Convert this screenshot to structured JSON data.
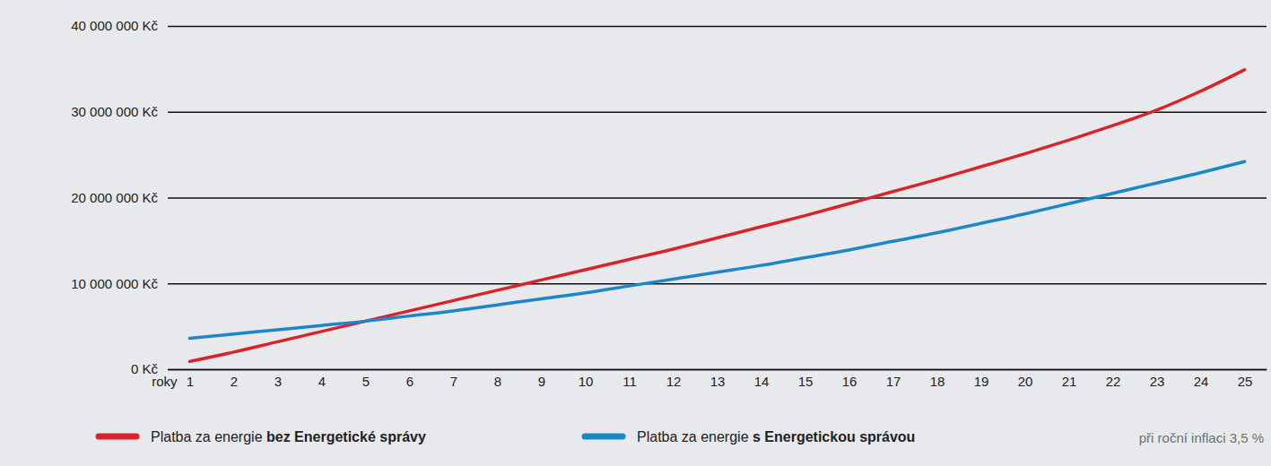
{
  "chart_data": {
    "type": "line",
    "x": [
      1,
      2,
      3,
      4,
      5,
      6,
      7,
      8,
      9,
      10,
      11,
      12,
      13,
      14,
      15,
      16,
      17,
      18,
      19,
      20,
      21,
      22,
      23,
      24,
      25
    ],
    "xlim": [
      0.5,
      25.5
    ],
    "xticks": [
      1,
      2,
      3,
      4,
      5,
      6,
      7,
      8,
      9,
      10,
      11,
      12,
      13,
      14,
      15,
      16,
      17,
      18,
      19,
      20,
      21,
      22,
      23,
      24,
      25
    ],
    "xlabel": "roky",
    "ylim": [
      0,
      40000000
    ],
    "yticks": [
      {
        "value": 0,
        "label": "0 Kč"
      },
      {
        "value": 10000000,
        "label": "10 000 000 Kč"
      },
      {
        "value": 20000000,
        "label": "20 000 000 Kč"
      },
      {
        "value": 30000000,
        "label": "30 000 000 Kč"
      },
      {
        "value": 40000000,
        "label": "40 000 000 Kč"
      }
    ],
    "grid": true,
    "legend": "bottom",
    "annotation": "při roční inflaci 3,5 %",
    "series": [
      {
        "name": "Platba za energie bez Energetické správy",
        "color": "#d8232a",
        "values": [
          900000,
          2000000,
          3200000,
          4400000,
          5600000,
          6800000,
          8000000,
          9200000,
          10400000,
          11600000,
          12800000,
          14000000,
          15300000,
          16600000,
          17900000,
          19300000,
          20700000,
          22100000,
          23600000,
          25100000,
          26700000,
          28400000,
          30200000,
          32400000,
          34900000
        ]
      },
      {
        "name": "Platba za energie s Energetickou správou",
        "color": "#1b87c9",
        "values": [
          3600000,
          4100000,
          4600000,
          5100000,
          5600000,
          6200000,
          6800000,
          7500000,
          8200000,
          8900000,
          9700000,
          10500000,
          11300000,
          12100000,
          13000000,
          13900000,
          14900000,
          15900000,
          17000000,
          18100000,
          19300000,
          20500000,
          21700000,
          22900000,
          24200000
        ]
      }
    ]
  }
}
